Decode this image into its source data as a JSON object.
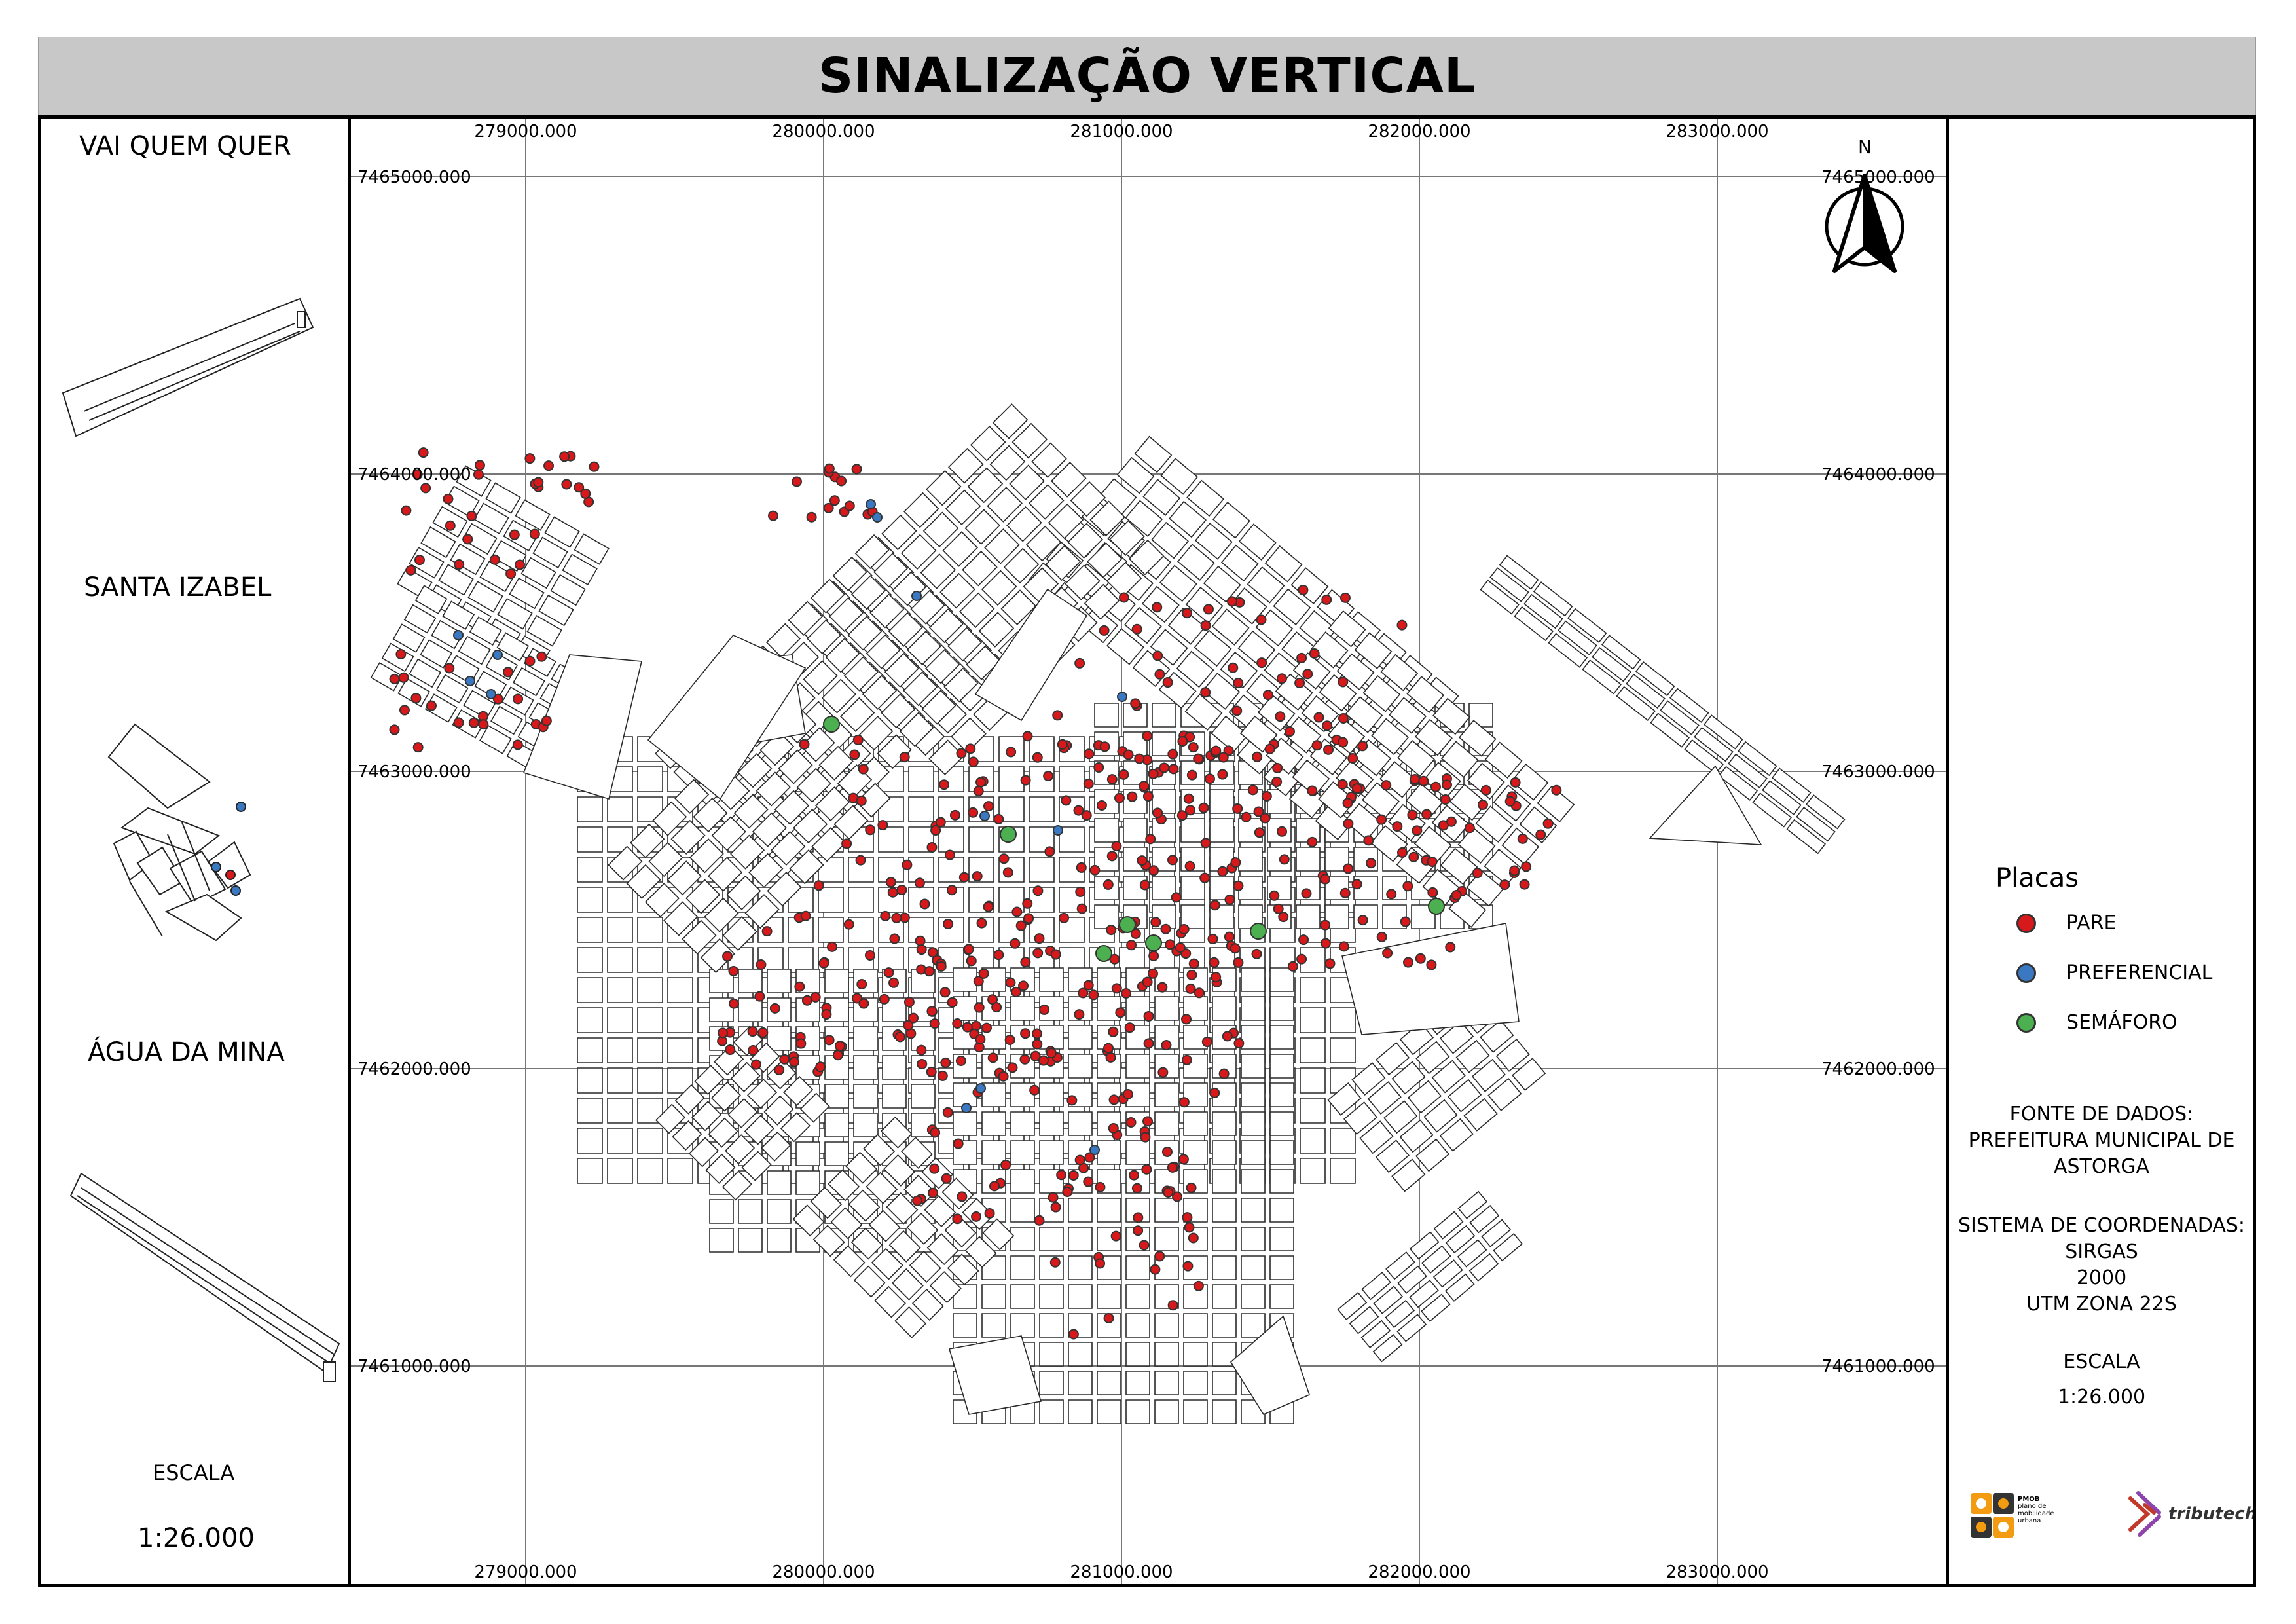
{
  "title": "SINALIZAÇÃO VERTICAL",
  "insets": [
    {
      "label": "VAI QUEM QUER"
    },
    {
      "label": "SANTA IZABEL"
    },
    {
      "label": "ÁGUA DA MINA"
    }
  ],
  "left_scale": {
    "label": "ESCALA",
    "value": "1:26.000"
  },
  "grid": {
    "x_labels": [
      "279000.000",
      "280000.000",
      "281000.000",
      "282000.000",
      "283000.000"
    ],
    "y_labels": [
      "7465000.000",
      "7464000.000",
      "7463000.000",
      "7462000.000",
      "7461000.000"
    ]
  },
  "north_label": "N",
  "legend": {
    "title": "Placas",
    "items": [
      {
        "label": "PARE",
        "color": "#d7191c"
      },
      {
        "label": "PREFERENCIAL",
        "color": "#3a78c2"
      },
      {
        "label": "SEMÁFORO",
        "color": "#4caf50"
      }
    ]
  },
  "source": {
    "heading": "FONTE DE DADOS:",
    "line1": "PREFEITURA MUNICIPAL DE",
    "line2": "ASTORGA"
  },
  "crs": {
    "heading": "SISTEMA DE COORDENADAS:",
    "line1": "SIRGAS",
    "line2": "2000",
    "line3": "UTM ZONA 22S"
  },
  "right_scale": {
    "label": "ESCALA",
    "value": "1:26.000"
  },
  "logos": {
    "pmob_lines": [
      "PMOB",
      "plano de",
      "mobilidade",
      "urbana"
    ],
    "tributech": "tributech"
  }
}
